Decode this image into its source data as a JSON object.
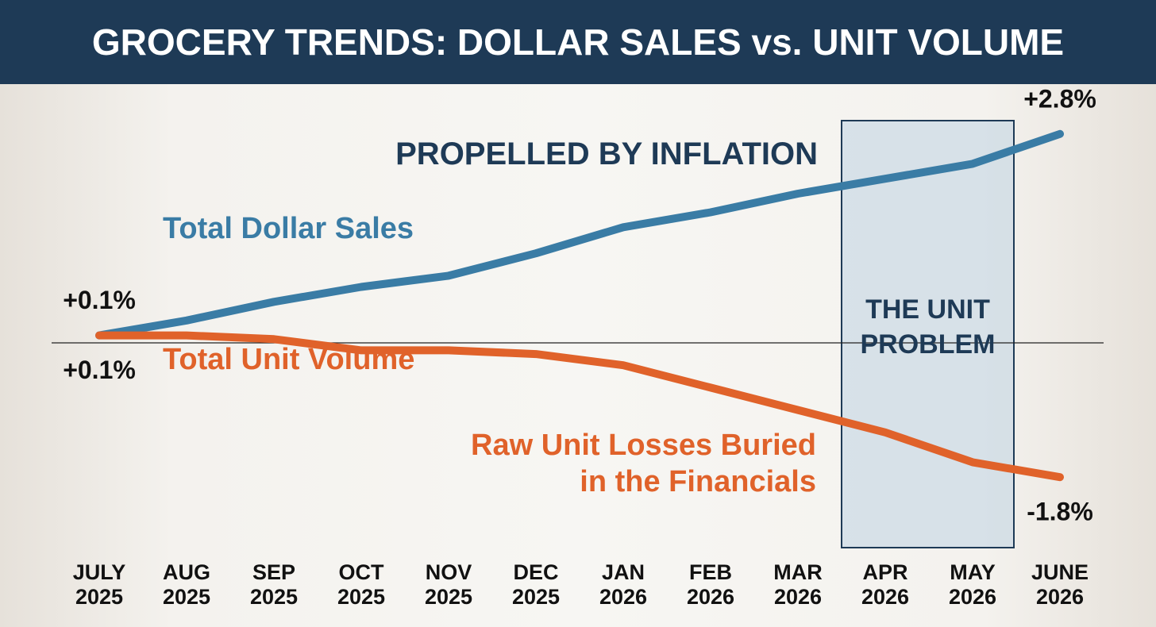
{
  "chart_data": {
    "type": "line",
    "title": "GROCERY TRENDS: DOLLAR SALES vs. UNIT VOLUME",
    "categories": [
      "JULY 2025",
      "AUG 2025",
      "SEP 2025",
      "OCT 2025",
      "NOV 2025",
      "DEC 2025",
      "JAN 2026",
      "FEB 2026",
      "MAR 2026",
      "APR 2026",
      "MAY 2026",
      "JUNE 2026"
    ],
    "series": [
      {
        "name": "Total Dollar Sales",
        "color": "#3a7ca5",
        "values": [
          0.1,
          0.3,
          0.55,
          0.75,
          0.9,
          1.2,
          1.55,
          1.75,
          2.0,
          2.2,
          2.4,
          2.8
        ],
        "value_labels": [
          "+0.1%",
          null,
          null,
          null,
          null,
          null,
          null,
          null,
          null,
          null,
          null,
          "+2.8%"
        ]
      },
      {
        "name": "Total Unit Volume",
        "color": "#e0622a",
        "values": [
          0.1,
          0.1,
          0.05,
          -0.1,
          -0.1,
          -0.15,
          -0.3,
          -0.6,
          -0.9,
          -1.2,
          -1.6,
          -1.8
        ],
        "value_labels": [
          "+0.1%",
          null,
          null,
          null,
          null,
          null,
          null,
          null,
          null,
          null,
          null,
          "-1.8%"
        ]
      }
    ],
    "ylim": [
      -2.0,
      3.0
    ],
    "annotations": [
      "PROPELLED BY INFLATION",
      "Raw Unit Losses Buried in the Financials",
      "THE UNIT PROBLEM"
    ]
  }
}
